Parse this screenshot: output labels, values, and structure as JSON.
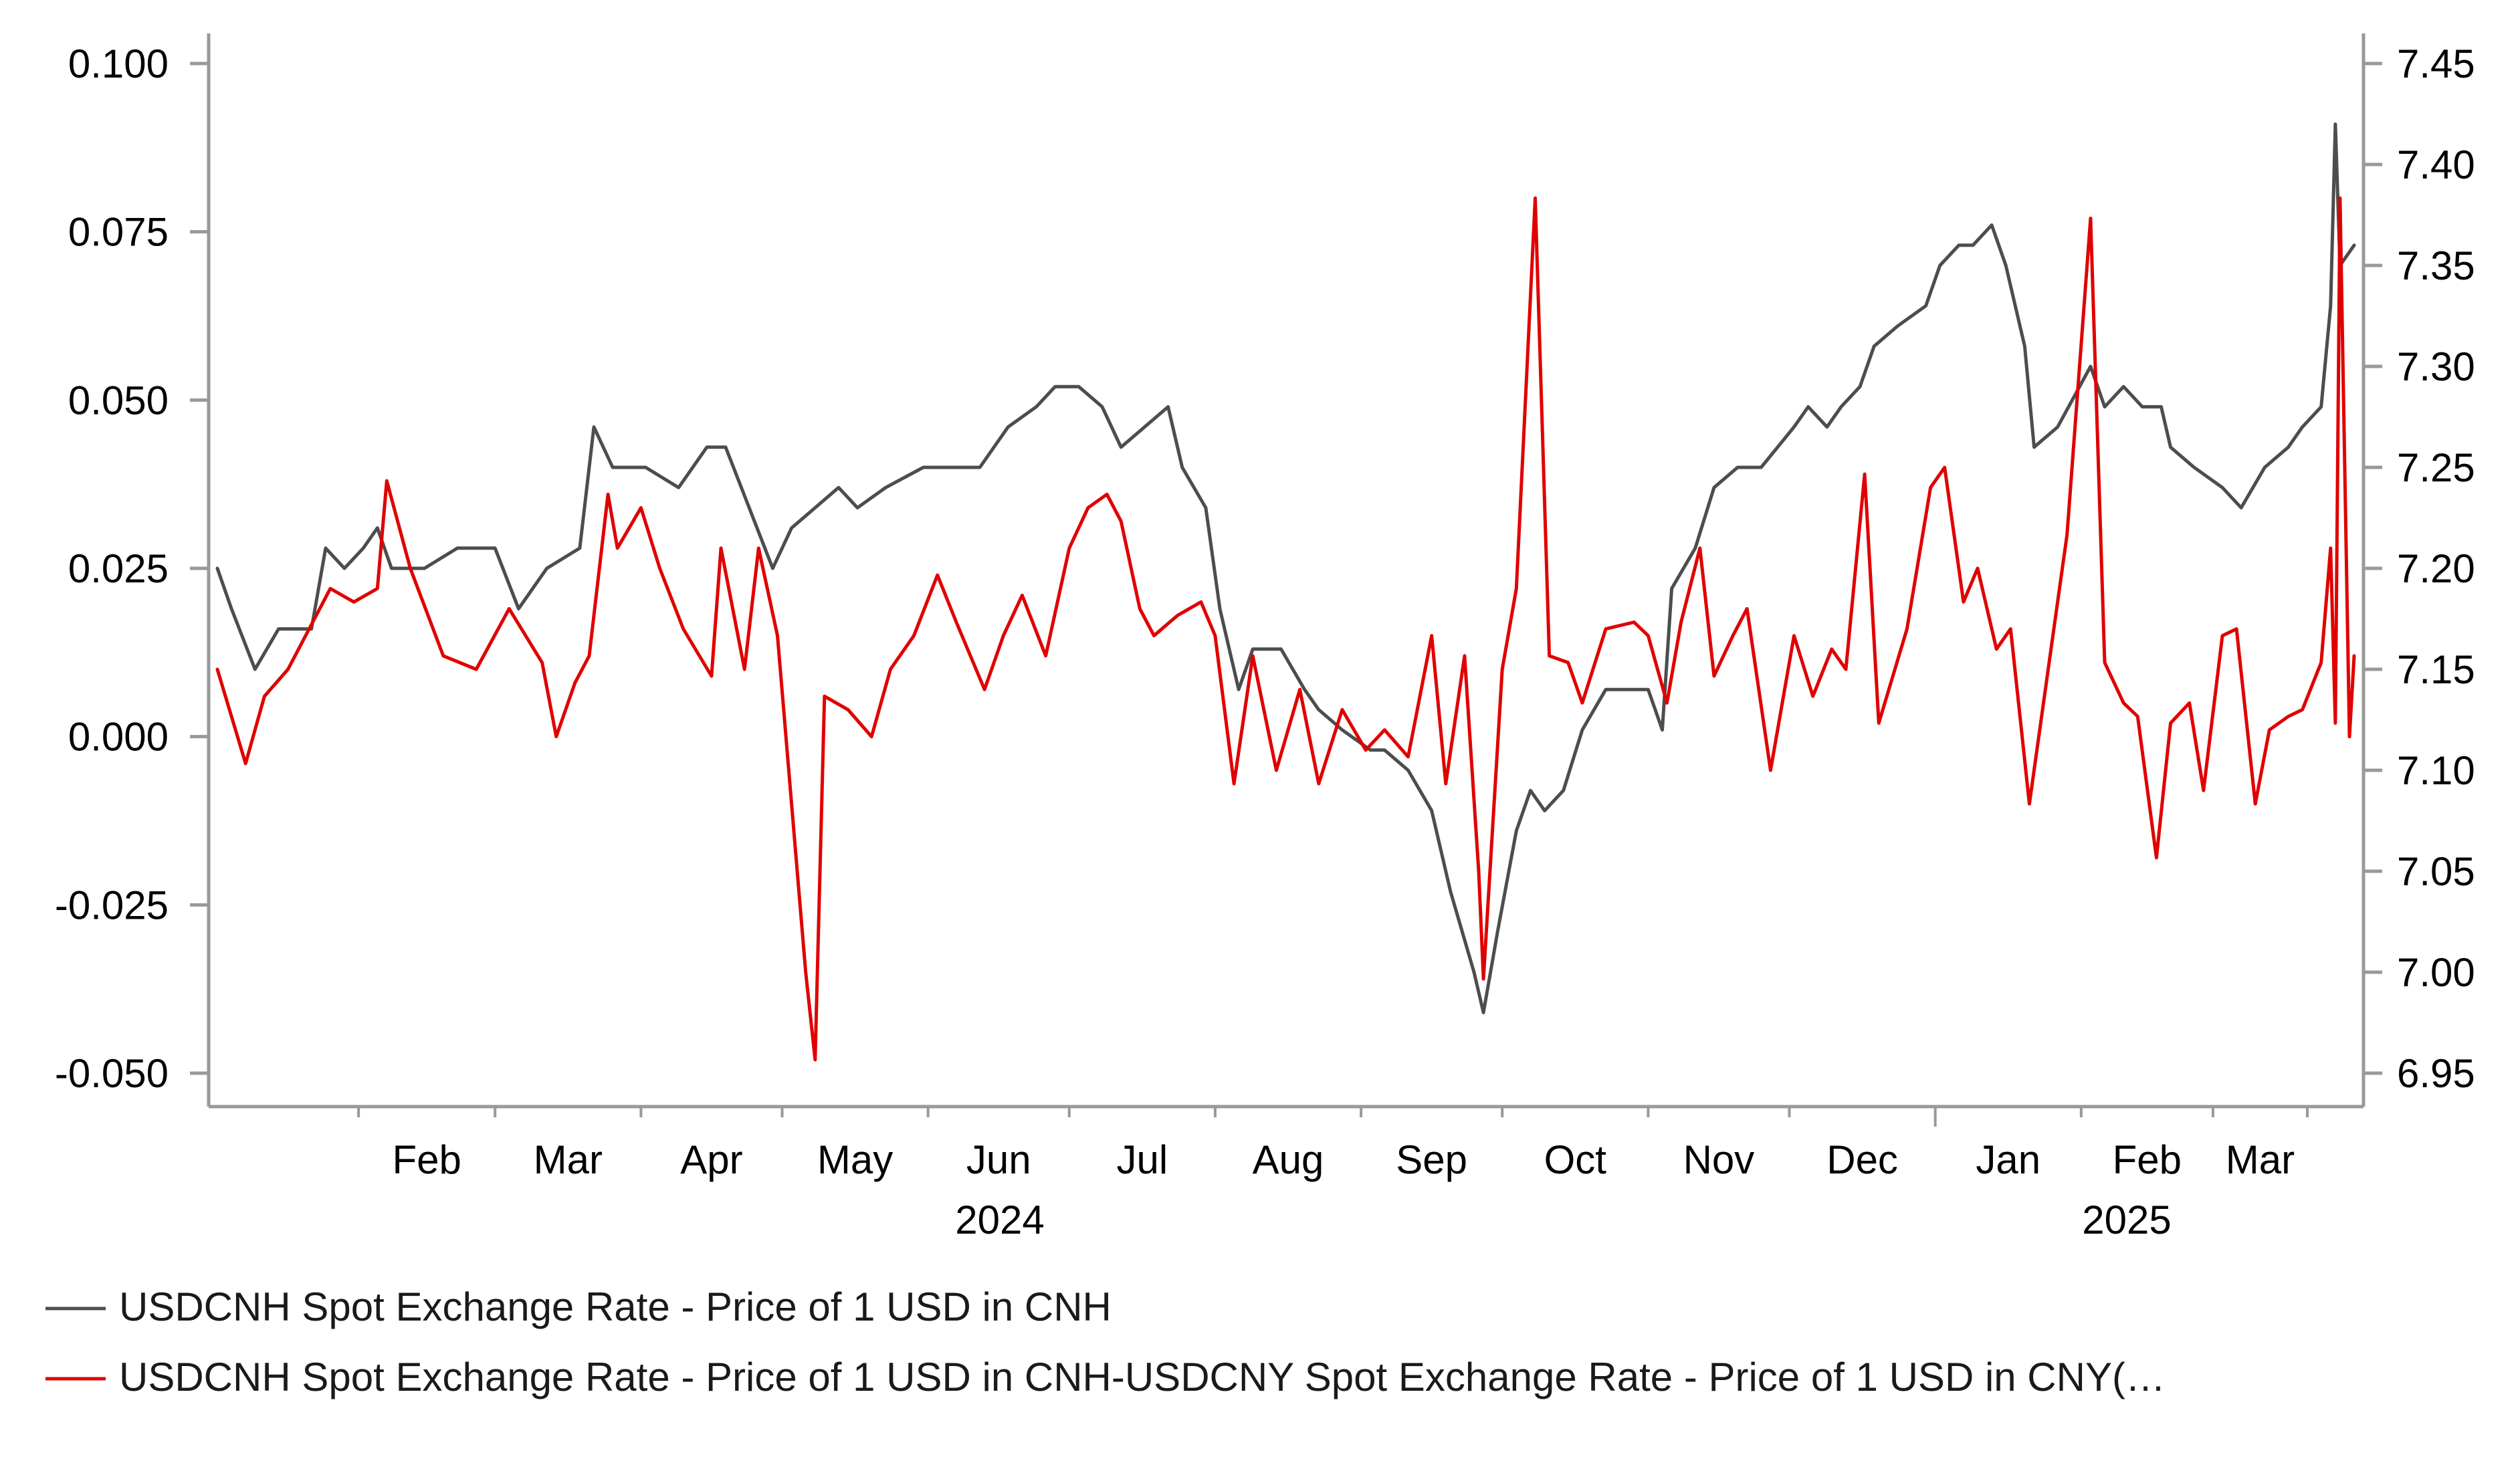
{
  "chart_data": {
    "type": "line",
    "title": "",
    "xlabel": "",
    "left_axis": {
      "ylim": [
        -0.05,
        0.1
      ],
      "ticks": [
        "0.100",
        "0.075",
        "0.050",
        "0.025",
        "0.000",
        "-0.025",
        "-0.050"
      ]
    },
    "right_axis": {
      "ylim": [
        6.95,
        7.45
      ],
      "ticks": [
        "7.45",
        "7.40",
        "7.35",
        "7.30",
        "7.25",
        "7.20",
        "7.15",
        "7.10",
        "7.05",
        "7.00",
        "6.95"
      ]
    },
    "x_range": [
      "2024-01-02",
      "2025-03-31"
    ],
    "month_labels": [
      "Feb",
      "Mar",
      "Apr",
      "May",
      "Jun",
      "Jul",
      "Aug",
      "Sep",
      "Oct",
      "Nov",
      "Dec",
      "Jan",
      "Feb",
      "Mar"
    ],
    "year_labels": [
      "2024",
      "2025"
    ],
    "grid": false,
    "legend_position": "bottom-left",
    "series": [
      {
        "name": "USDCNH Spot Exchange Rate - Price of 1 USD in CNH",
        "axis": "right",
        "color": "#4d4d4d",
        "points": [
          [
            "2024-01-02",
            7.2
          ],
          [
            "2024-01-05",
            7.18
          ],
          [
            "2024-01-10",
            7.15
          ],
          [
            "2024-01-15",
            7.17
          ],
          [
            "2024-01-22",
            7.17
          ],
          [
            "2024-01-25",
            7.21
          ],
          [
            "2024-01-29",
            7.2
          ],
          [
            "2024-02-02",
            7.21
          ],
          [
            "2024-02-05",
            7.22
          ],
          [
            "2024-02-08",
            7.2
          ],
          [
            "2024-02-15",
            7.2
          ],
          [
            "2024-02-22",
            7.21
          ],
          [
            "2024-03-01",
            7.21
          ],
          [
            "2024-03-06",
            7.18
          ],
          [
            "2024-03-12",
            7.2
          ],
          [
            "2024-03-19",
            7.21
          ],
          [
            "2024-03-22",
            7.27
          ],
          [
            "2024-03-26",
            7.25
          ],
          [
            "2024-04-02",
            7.25
          ],
          [
            "2024-04-09",
            7.24
          ],
          [
            "2024-04-15",
            7.26
          ],
          [
            "2024-04-19",
            7.26
          ],
          [
            "2024-04-24",
            7.23
          ],
          [
            "2024-04-29",
            7.2
          ],
          [
            "2024-05-03",
            7.22
          ],
          [
            "2024-05-08",
            7.23
          ],
          [
            "2024-05-13",
            7.24
          ],
          [
            "2024-05-17",
            7.23
          ],
          [
            "2024-05-23",
            7.24
          ],
          [
            "2024-05-31",
            7.25
          ],
          [
            "2024-06-06",
            7.25
          ],
          [
            "2024-06-12",
            7.25
          ],
          [
            "2024-06-18",
            7.27
          ],
          [
            "2024-06-24",
            7.28
          ],
          [
            "2024-06-28",
            7.29
          ],
          [
            "2024-07-03",
            7.29
          ],
          [
            "2024-07-08",
            7.28
          ],
          [
            "2024-07-12",
            7.26
          ],
          [
            "2024-07-17",
            7.27
          ],
          [
            "2024-07-22",
            7.28
          ],
          [
            "2024-07-25",
            7.25
          ],
          [
            "2024-07-30",
            7.23
          ],
          [
            "2024-08-02",
            7.18
          ],
          [
            "2024-08-06",
            7.14
          ],
          [
            "2024-08-09",
            7.16
          ],
          [
            "2024-08-15",
            7.16
          ],
          [
            "2024-08-20",
            7.14
          ],
          [
            "2024-08-23",
            7.13
          ],
          [
            "2024-08-28",
            7.12
          ],
          [
            "2024-09-03",
            7.11
          ],
          [
            "2024-09-06",
            7.11
          ],
          [
            "2024-09-11",
            7.1
          ],
          [
            "2024-09-16",
            7.08
          ],
          [
            "2024-09-20",
            7.04
          ],
          [
            "2024-09-25",
            7.0
          ],
          [
            "2024-09-27",
            6.98
          ],
          [
            "2024-09-30",
            7.02
          ],
          [
            "2024-10-04",
            7.07
          ],
          [
            "2024-10-07",
            7.09
          ],
          [
            "2024-10-10",
            7.08
          ],
          [
            "2024-10-14",
            7.09
          ],
          [
            "2024-10-18",
            7.12
          ],
          [
            "2024-10-23",
            7.14
          ],
          [
            "2024-10-28",
            7.14
          ],
          [
            "2024-11-01",
            7.14
          ],
          [
            "2024-11-04",
            7.12
          ],
          [
            "2024-11-06",
            7.19
          ],
          [
            "2024-11-11",
            7.21
          ],
          [
            "2024-11-15",
            7.24
          ],
          [
            "2024-11-20",
            7.25
          ],
          [
            "2024-11-25",
            7.25
          ],
          [
            "2024-12-02",
            7.27
          ],
          [
            "2024-12-05",
            7.28
          ],
          [
            "2024-12-09",
            7.27
          ],
          [
            "2024-12-12",
            7.28
          ],
          [
            "2024-12-16",
            7.29
          ],
          [
            "2024-12-19",
            7.31
          ],
          [
            "2024-12-24",
            7.32
          ],
          [
            "2024-12-30",
            7.33
          ],
          [
            "2025-01-02",
            7.35
          ],
          [
            "2025-01-06",
            7.36
          ],
          [
            "2025-01-09",
            7.36
          ],
          [
            "2025-01-13",
            7.37
          ],
          [
            "2025-01-16",
            7.35
          ],
          [
            "2025-01-20",
            7.31
          ],
          [
            "2025-01-22",
            7.26
          ],
          [
            "2025-01-27",
            7.27
          ],
          [
            "2025-02-03",
            7.3
          ],
          [
            "2025-02-06",
            7.28
          ],
          [
            "2025-02-10",
            7.29
          ],
          [
            "2025-02-14",
            7.28
          ],
          [
            "2025-02-18",
            7.28
          ],
          [
            "2025-02-20",
            7.26
          ],
          [
            "2025-02-25",
            7.25
          ],
          [
            "2025-03-03",
            7.24
          ],
          [
            "2025-03-07",
            7.23
          ],
          [
            "2025-03-12",
            7.25
          ],
          [
            "2025-03-17",
            7.26
          ],
          [
            "2025-03-20",
            7.27
          ],
          [
            "2025-03-24",
            7.28
          ],
          [
            "2025-03-26",
            7.33
          ],
          [
            "2025-03-27",
            7.42
          ],
          [
            "2025-03-28",
            7.35
          ],
          [
            "2025-03-31",
            7.36
          ]
        ]
      },
      {
        "name": "USDCNH Spot Exchange Rate - Price of 1 USD in CNH-USDCNY Spot Exchange Rate - Price of 1 USD in CNY(…",
        "axis": "left",
        "color": "#e00000",
        "points": [
          [
            "2024-01-02",
            0.01
          ],
          [
            "2024-01-08",
            -0.004
          ],
          [
            "2024-01-12",
            0.006
          ],
          [
            "2024-01-17",
            0.01
          ],
          [
            "2024-01-23",
            0.018
          ],
          [
            "2024-01-26",
            0.022
          ],
          [
            "2024-01-31",
            0.02
          ],
          [
            "2024-02-05",
            0.022
          ],
          [
            "2024-02-07",
            0.038
          ],
          [
            "2024-02-12",
            0.025
          ],
          [
            "2024-02-19",
            0.012
          ],
          [
            "2024-02-26",
            0.01
          ],
          [
            "2024-03-04",
            0.019
          ],
          [
            "2024-03-11",
            0.011
          ],
          [
            "2024-03-14",
            0.0
          ],
          [
            "2024-03-18",
            0.008
          ],
          [
            "2024-03-21",
            0.012
          ],
          [
            "2024-03-25",
            0.036
          ],
          [
            "2024-03-27",
            0.028
          ],
          [
            "2024-04-01",
            0.034
          ],
          [
            "2024-04-05",
            0.025
          ],
          [
            "2024-04-10",
            0.016
          ],
          [
            "2024-04-16",
            0.009
          ],
          [
            "2024-04-18",
            0.028
          ],
          [
            "2024-04-23",
            0.01
          ],
          [
            "2024-04-26",
            0.028
          ],
          [
            "2024-04-30",
            0.015
          ],
          [
            "2024-05-06",
            -0.035
          ],
          [
            "2024-05-08",
            -0.048
          ],
          [
            "2024-05-10",
            0.006
          ],
          [
            "2024-05-15",
            0.004
          ],
          [
            "2024-05-20",
            0.0
          ],
          [
            "2024-05-24",
            0.01
          ],
          [
            "2024-05-29",
            0.015
          ],
          [
            "2024-06-03",
            0.024
          ],
          [
            "2024-06-07",
            0.017
          ],
          [
            "2024-06-13",
            0.007
          ],
          [
            "2024-06-17",
            0.015
          ],
          [
            "2024-06-21",
            0.021
          ],
          [
            "2024-06-26",
            0.012
          ],
          [
            "2024-07-01",
            0.028
          ],
          [
            "2024-07-05",
            0.034
          ],
          [
            "2024-07-09",
            0.036
          ],
          [
            "2024-07-12",
            0.032
          ],
          [
            "2024-07-16",
            0.019
          ],
          [
            "2024-07-19",
            0.015
          ],
          [
            "2024-07-24",
            0.018
          ],
          [
            "2024-07-29",
            0.02
          ],
          [
            "2024-08-01",
            0.015
          ],
          [
            "2024-08-05",
            -0.007
          ],
          [
            "2024-08-09",
            0.012
          ],
          [
            "2024-08-14",
            -0.005
          ],
          [
            "2024-08-19",
            0.007
          ],
          [
            "2024-08-23",
            -0.007
          ],
          [
            "2024-08-28",
            0.004
          ],
          [
            "2024-09-02",
            -0.002
          ],
          [
            "2024-09-06",
            0.001
          ],
          [
            "2024-09-11",
            -0.003
          ],
          [
            "2024-09-16",
            0.015
          ],
          [
            "2024-09-19",
            -0.007
          ],
          [
            "2024-09-23",
            0.012
          ],
          [
            "2024-09-26",
            -0.02
          ],
          [
            "2024-09-27",
            -0.036
          ],
          [
            "2024-10-01",
            0.01
          ],
          [
            "2024-10-04",
            0.022
          ],
          [
            "2024-10-08",
            0.08
          ],
          [
            "2024-10-11",
            0.012
          ],
          [
            "2024-10-15",
            0.011
          ],
          [
            "2024-10-18",
            0.005
          ],
          [
            "2024-10-23",
            0.016
          ],
          [
            "2024-10-29",
            0.017
          ],
          [
            "2024-11-01",
            0.015
          ],
          [
            "2024-11-05",
            0.005
          ],
          [
            "2024-11-08",
            0.017
          ],
          [
            "2024-11-12",
            0.028
          ],
          [
            "2024-11-15",
            0.009
          ],
          [
            "2024-11-19",
            0.015
          ],
          [
            "2024-11-22",
            0.019
          ],
          [
            "2024-11-27",
            -0.005
          ],
          [
            "2024-12-02",
            0.015
          ],
          [
            "2024-12-06",
            0.006
          ],
          [
            "2024-12-10",
            0.013
          ],
          [
            "2024-12-13",
            0.01
          ],
          [
            "2024-12-17",
            0.039
          ],
          [
            "2024-12-20",
            0.002
          ],
          [
            "2024-12-26",
            0.016
          ],
          [
            "2024-12-31",
            0.037
          ],
          [
            "2025-01-03",
            0.04
          ],
          [
            "2025-01-07",
            0.02
          ],
          [
            "2025-01-10",
            0.025
          ],
          [
            "2025-01-14",
            0.013
          ],
          [
            "2025-01-17",
            0.016
          ],
          [
            "2025-01-21",
            -0.01
          ],
          [
            "2025-01-24",
            0.005
          ],
          [
            "2025-01-29",
            0.03
          ],
          [
            "2025-02-03",
            0.077
          ],
          [
            "2025-02-06",
            0.011
          ],
          [
            "2025-02-10",
            0.005
          ],
          [
            "2025-02-13",
            0.003
          ],
          [
            "2025-02-17",
            -0.018
          ],
          [
            "2025-02-20",
            0.002
          ],
          [
            "2025-02-24",
            0.005
          ],
          [
            "2025-02-27",
            -0.008
          ],
          [
            "2025-03-03",
            0.015
          ],
          [
            "2025-03-06",
            0.016
          ],
          [
            "2025-03-10",
            -0.01
          ],
          [
            "2025-03-13",
            0.001
          ],
          [
            "2025-03-17",
            0.003
          ],
          [
            "2025-03-20",
            0.004
          ],
          [
            "2025-03-24",
            0.011
          ],
          [
            "2025-03-26",
            0.028
          ],
          [
            "2025-03-27",
            0.002
          ],
          [
            "2025-03-28",
            0.08
          ],
          [
            "2025-03-30",
            0.0
          ],
          [
            "2025-03-31",
            0.012
          ]
        ]
      }
    ]
  }
}
